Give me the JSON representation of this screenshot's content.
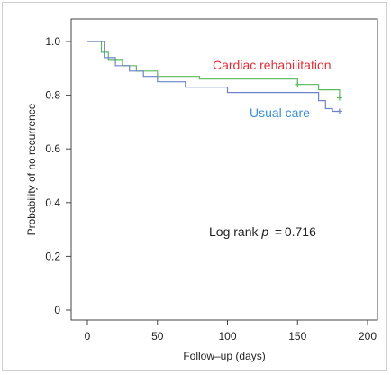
{
  "chart_data": {
    "type": "line",
    "step": true,
    "xlabel": "Follow–up (days)",
    "ylabel": "Probability of no recurrence",
    "xlim": [
      0,
      200
    ],
    "ylim": [
      0,
      1.0
    ],
    "x_ticks": [
      0,
      50,
      100,
      150,
      200
    ],
    "y_ticks": [
      0,
      0.2,
      0.4,
      0.6,
      0.8,
      1.0
    ],
    "x_tick_labels": [
      "0",
      "50",
      "100",
      "150",
      "200"
    ],
    "y_tick_labels": [
      "0",
      "0.2",
      "0.4",
      "0.6",
      "0.8",
      "1.0"
    ],
    "grid": false,
    "series": [
      {
        "name": "Cardiac rehabilitation",
        "color": "#5cb85c",
        "label_color": "#e0303a",
        "points": [
          [
            0,
            1.0
          ],
          [
            10,
            1.0
          ],
          [
            10,
            0.96
          ],
          [
            15,
            0.96
          ],
          [
            15,
            0.93
          ],
          [
            25,
            0.93
          ],
          [
            25,
            0.91
          ],
          [
            35,
            0.91
          ],
          [
            35,
            0.89
          ],
          [
            50,
            0.89
          ],
          [
            50,
            0.87
          ],
          [
            80,
            0.87
          ],
          [
            80,
            0.86
          ],
          [
            150,
            0.86
          ],
          [
            150,
            0.84
          ],
          [
            165,
            0.84
          ],
          [
            165,
            0.82
          ],
          [
            180,
            0.82
          ],
          [
            180,
            0.79
          ]
        ],
        "censor": [
          [
            150,
            0.84
          ],
          [
            180,
            0.79
          ]
        ]
      },
      {
        "name": "Usual care",
        "color": "#6f84c8",
        "label_color": "#3a8fd8",
        "points": [
          [
            0,
            1.0
          ],
          [
            12,
            1.0
          ],
          [
            12,
            0.94
          ],
          [
            20,
            0.94
          ],
          [
            20,
            0.91
          ],
          [
            30,
            0.91
          ],
          [
            30,
            0.89
          ],
          [
            40,
            0.89
          ],
          [
            40,
            0.87
          ],
          [
            50,
            0.87
          ],
          [
            50,
            0.85
          ],
          [
            70,
            0.85
          ],
          [
            70,
            0.83
          ],
          [
            100,
            0.83
          ],
          [
            100,
            0.81
          ],
          [
            165,
            0.81
          ],
          [
            165,
            0.78
          ],
          [
            170,
            0.78
          ],
          [
            170,
            0.75
          ],
          [
            175,
            0.75
          ],
          [
            175,
            0.74
          ],
          [
            180,
            0.74
          ]
        ],
        "censor": [
          [
            180,
            0.74
          ]
        ]
      }
    ],
    "annotation": {
      "text_prefix": "Log rank ",
      "p_symbol": "p",
      "text_suffix": " = 0.716"
    }
  }
}
